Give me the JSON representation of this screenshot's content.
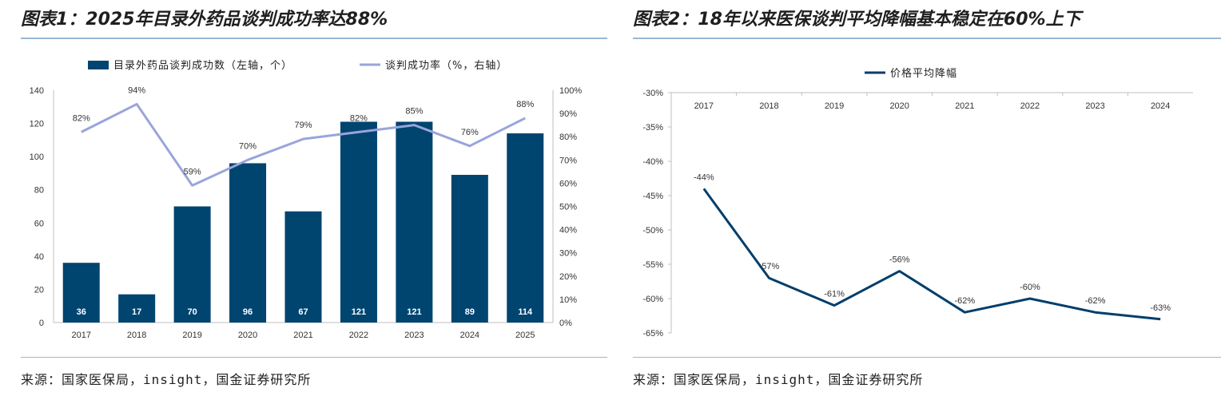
{
  "colors": {
    "bar": "#004470",
    "rate_line": "#9aa4db",
    "decline_line": "#003e6b",
    "axis": "#bfbfbf",
    "grid": "#d9d9d9",
    "rule": "#9bb7d4"
  },
  "left": {
    "title": "图表1：2025年目录外药品谈判成功率达88%",
    "source": "来源：国家医保局，insight，国金证券研究所"
  },
  "right": {
    "title": "图表2：18年以来医保谈判平均降幅基本稳定在60%上下",
    "source": "来源：国家医保局，insight，国金证券研究所"
  },
  "chart_data": [
    {
      "type": "bar",
      "title": "2025年目录外药品谈判成功率达88%",
      "categories": [
        "2017",
        "2018",
        "2019",
        "2020",
        "2021",
        "2022",
        "2023",
        "2024",
        "2025"
      ],
      "series": [
        {
          "name": "目录外药品谈判成功数（左轴，个）",
          "axis": "left",
          "type": "bar",
          "values": [
            36,
            17,
            70,
            96,
            67,
            121,
            121,
            89,
            114
          ]
        },
        {
          "name": "谈判成功率（%，右轴）",
          "axis": "right",
          "type": "line",
          "values": [
            82,
            94,
            59,
            70,
            79,
            82,
            85,
            76,
            88
          ]
        }
      ],
      "y_left": {
        "min": 0,
        "max": 140,
        "step": 20
      },
      "y_right": {
        "min": 0,
        "max": 100,
        "step": 10,
        "suffix": "%"
      },
      "grid": false,
      "legend": "top"
    },
    {
      "type": "line",
      "title": "18年以来医保谈判平均降幅基本稳定在60%上下",
      "categories": [
        "2017",
        "2018",
        "2019",
        "2020",
        "2021",
        "2022",
        "2023",
        "2024"
      ],
      "series": [
        {
          "name": "价格平均降幅",
          "values": [
            -44,
            -57,
            -61,
            -56,
            -62,
            -60,
            -62,
            -63
          ]
        }
      ],
      "ylim": [
        -65,
        -30
      ],
      "ystep": 5,
      "suffix": "%",
      "x_axis_position": "top",
      "grid": false,
      "legend": "top-left"
    }
  ]
}
